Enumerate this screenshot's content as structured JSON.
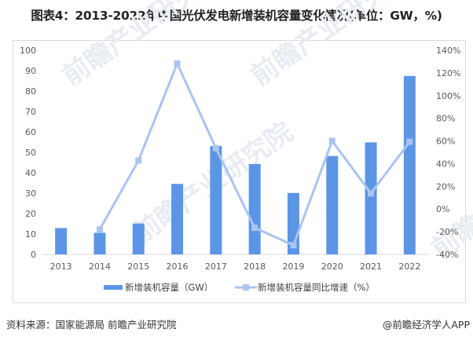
{
  "title": "图表4：2013-2022年中国光伏发电新增装机容量变化情况(单位：GW，%)",
  "source": "资料来源：国家能源局 前瞻产业研究院",
  "credit": "@前瞻经济学人APP",
  "watermark": "前瞻产业研究院",
  "colors": {
    "bar": "#5b96e6",
    "line": "#aac4f2",
    "axis": "#d9d9d9",
    "text": "#595959"
  },
  "chart_data": {
    "type": "bar+line",
    "title": "2013-2022年中国光伏发电新增装机容量变化情况(单位：GW，%)",
    "categories": [
      "2013",
      "2014",
      "2015",
      "2016",
      "2017",
      "2018",
      "2019",
      "2020",
      "2021",
      "2022"
    ],
    "series": [
      {
        "name": "新增装机容量（GW）",
        "type": "bar",
        "axis": "left",
        "values": [
          12.92,
          10.6,
          15.13,
          34.54,
          53.06,
          44.26,
          30.11,
          48.2,
          54.88,
          87.41
        ]
      },
      {
        "name": "新增装机容量同比增速（%）",
        "type": "line",
        "axis": "right",
        "values": [
          null,
          -17.96,
          42.74,
          128.28,
          53.62,
          -16.58,
          -31.97,
          60.08,
          13.86,
          59.27
        ]
      }
    ],
    "left_axis": {
      "ylim": [
        0,
        100
      ],
      "ticks": [
        "0",
        "10",
        "20",
        "30",
        "40",
        "50",
        "60",
        "70",
        "80",
        "90",
        "100"
      ]
    },
    "right_axis": {
      "ylim": [
        -40,
        140
      ],
      "ticks": [
        "-40%",
        "-20%",
        "0%",
        "20%",
        "40%",
        "60%",
        "80%",
        "100%",
        "120%",
        "140%"
      ]
    },
    "grid": false,
    "legend_position": "bottom"
  }
}
